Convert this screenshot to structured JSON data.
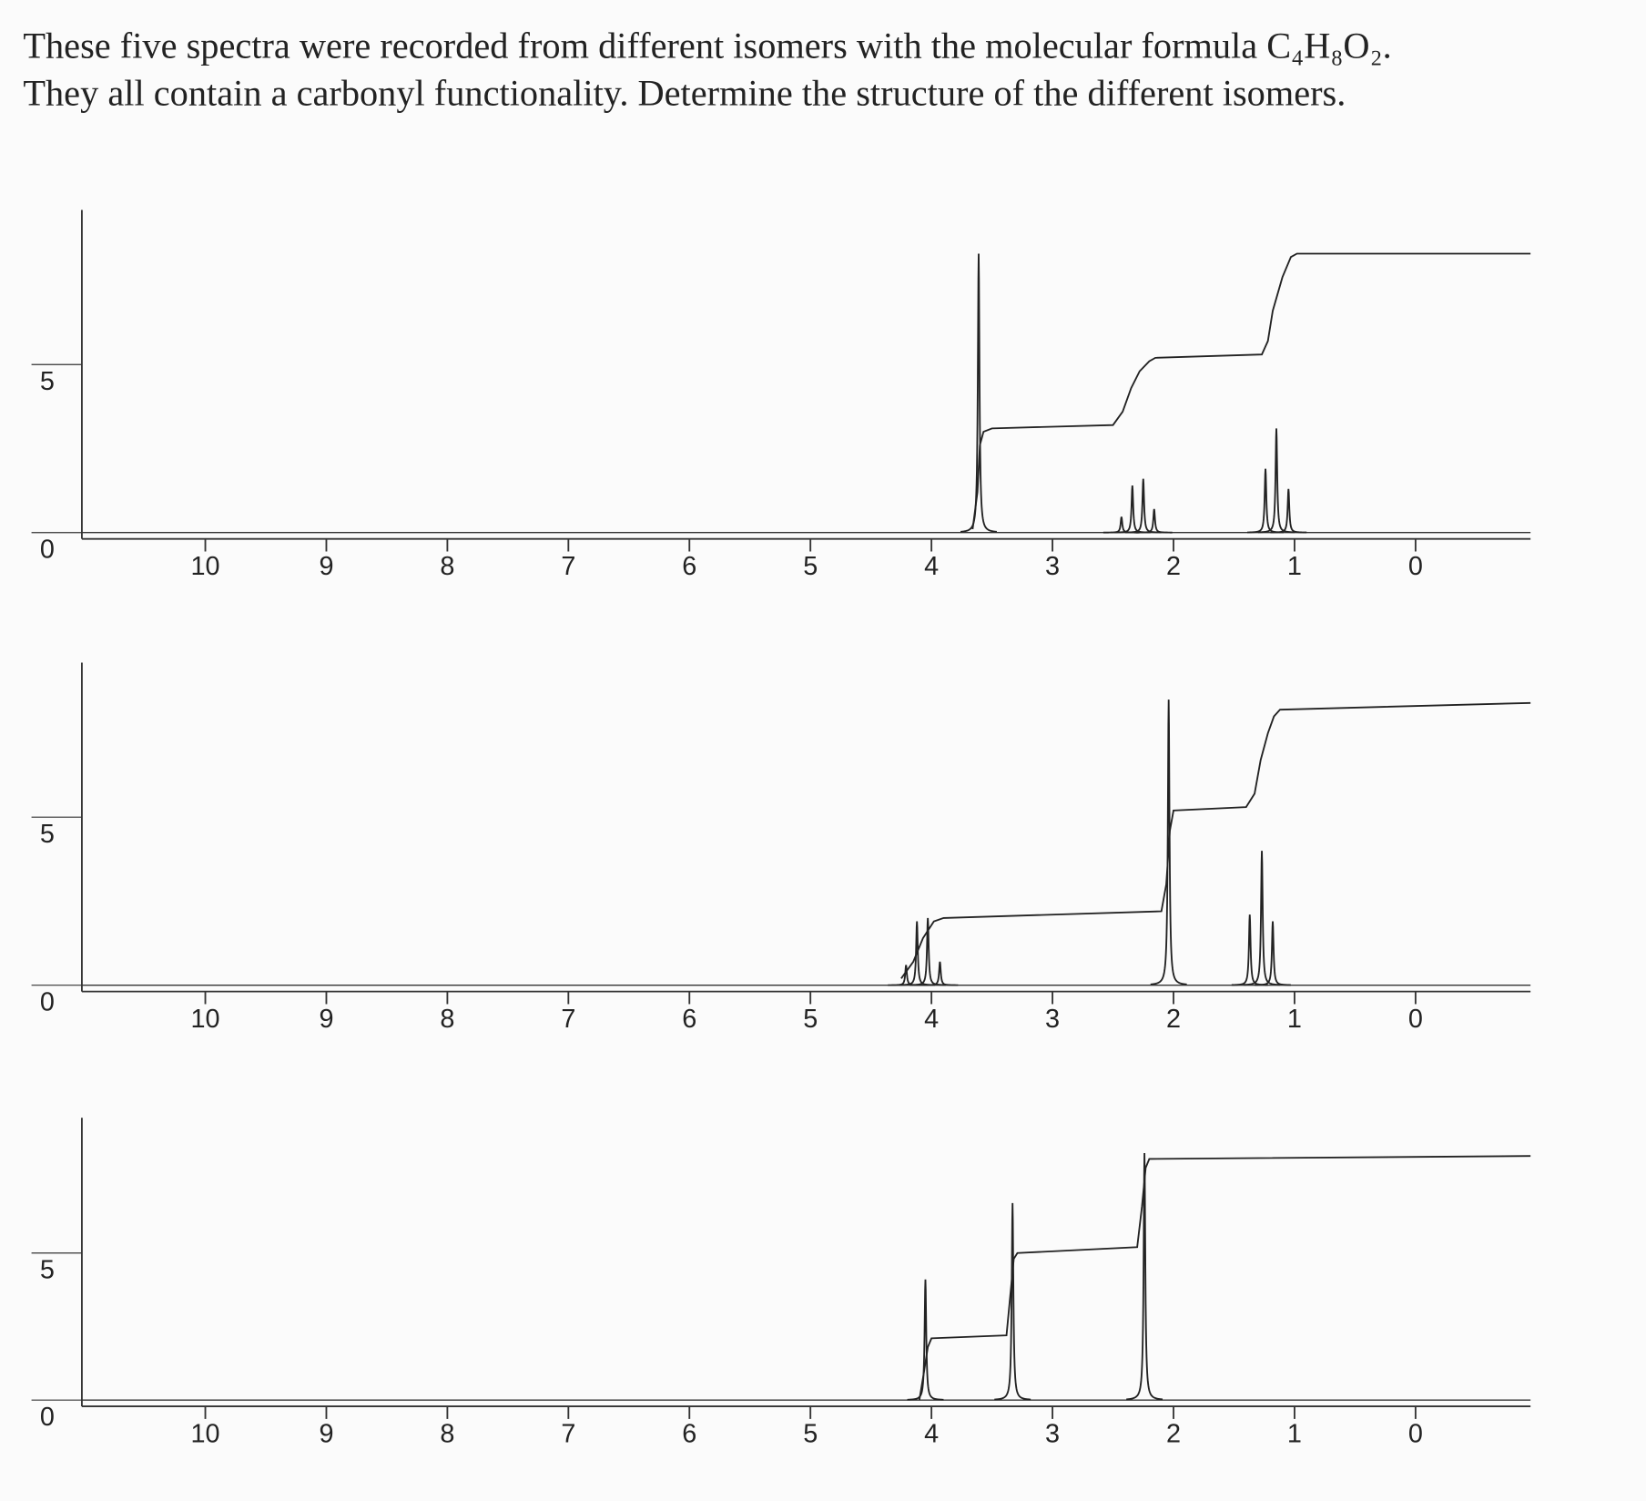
{
  "header": {
    "line1": "These five spectra were recorded from different isomers with the molecular formula C₄H₈O₂.",
    "line2": "They all contain a carbonyl functionality. Determine the structure of the different isomers."
  },
  "chart_data": [
    {
      "type": "nmr",
      "xlim": [
        11.02,
        -0.95
      ],
      "xticks": [
        10,
        9,
        8,
        7,
        6,
        5,
        4,
        3,
        2,
        1,
        0
      ],
      "ylim": [
        0,
        9.6
      ],
      "yticks": [
        0,
        5
      ],
      "peaks": {
        "x": [
          3.61,
          2.43,
          2.34,
          2.25,
          2.16,
          1.24,
          1.15,
          1.05
        ],
        "values": [
          8.3,
          0.47,
          1.4,
          1.6,
          0.7,
          1.9,
          3.1,
          1.3
        ]
      },
      "integral": {
        "x": [
          3.66,
          3.62,
          3.6,
          3.57,
          3.5,
          2.5,
          2.42,
          2.35,
          2.28,
          2.2,
          2.15,
          1.27,
          1.22,
          1.18,
          1.1,
          1.03,
          0.98,
          -0.95
        ],
        "values": [
          0.1,
          1.2,
          2.6,
          3.0,
          3.1,
          3.2,
          3.6,
          4.3,
          4.8,
          5.1,
          5.2,
          5.3,
          5.7,
          6.6,
          7.6,
          8.2,
          8.3,
          8.3
        ]
      }
    },
    {
      "type": "nmr",
      "xlim": [
        11.02,
        -0.95
      ],
      "xticks": [
        10,
        9,
        8,
        7,
        6,
        5,
        4,
        3,
        2,
        1,
        0
      ],
      "ylim": [
        0,
        9.6
      ],
      "yticks": [
        0,
        5
      ],
      "peaks": {
        "x": [
          4.21,
          4.12,
          4.03,
          3.93,
          2.04,
          1.37,
          1.27,
          1.18
        ],
        "values": [
          0.6,
          1.9,
          2.0,
          0.7,
          8.5,
          2.1,
          4.0,
          1.9
        ]
      },
      "integral": {
        "x": [
          4.25,
          4.15,
          4.07,
          3.98,
          3.9,
          2.1,
          2.06,
          2.03,
          2.0,
          1.4,
          1.33,
          1.28,
          1.22,
          1.17,
          1.12,
          -0.95
        ],
        "values": [
          0.2,
          0.7,
          1.4,
          1.9,
          2.0,
          2.2,
          3.0,
          4.6,
          5.2,
          5.3,
          5.7,
          6.7,
          7.5,
          8.0,
          8.2,
          8.4
        ]
      }
    },
    {
      "type": "nmr",
      "xlim": [
        11.02,
        -0.95
      ],
      "xticks": [
        10,
        9,
        8,
        7,
        6,
        5,
        4,
        3,
        2,
        1,
        0
      ],
      "ylim": [
        0,
        9.6
      ],
      "yticks": [
        0,
        5
      ],
      "peaks": {
        "x": [
          4.05,
          3.33,
          2.24
        ],
        "values": [
          4.1,
          6.7,
          8.4
        ]
      },
      "integral": {
        "x": [
          4.1,
          4.06,
          4.03,
          4.0,
          3.38,
          3.35,
          3.32,
          3.29,
          2.3,
          2.26,
          2.23,
          2.2,
          -0.95
        ],
        "values": [
          0,
          1.0,
          1.8,
          2.1,
          2.2,
          3.5,
          4.8,
          5.0,
          5.2,
          6.6,
          7.9,
          8.2,
          8.3
        ]
      }
    }
  ]
}
